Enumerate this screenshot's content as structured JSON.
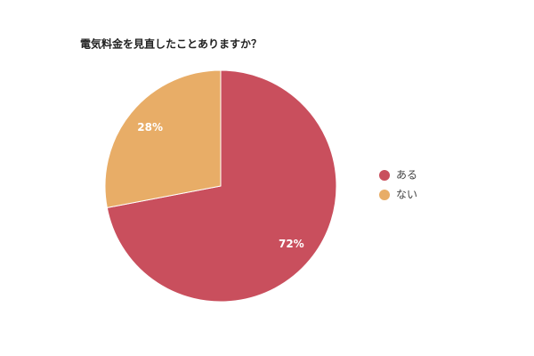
{
  "chart_data": {
    "type": "pie",
    "title": "電気料金を見直したことありますか？",
    "categories": [
      "ある",
      "ない"
    ],
    "values": [
      72,
      28
    ],
    "value_labels": [
      "72%",
      "28%"
    ],
    "colors": [
      "#c94f5d",
      "#e8ad67"
    ],
    "legend": "right"
  }
}
